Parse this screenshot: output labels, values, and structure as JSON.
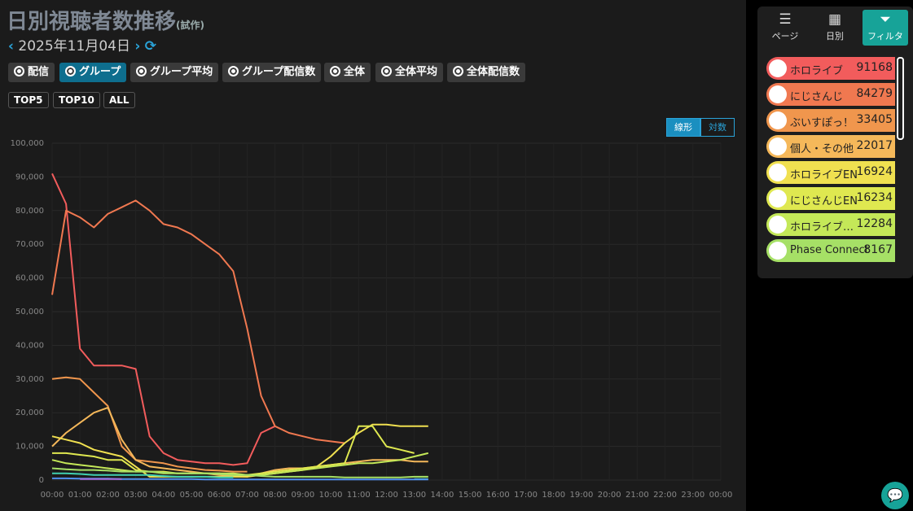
{
  "header": {
    "title": "日別視聴者数推移",
    "suffix": "(試作)",
    "date": "2025年11月04日"
  },
  "nav": [
    "ページ",
    "日別",
    "フィルタ"
  ],
  "modes": [
    "配信",
    "グループ",
    "グループ平均",
    "グループ配信数",
    "全体",
    "全体平均",
    "全体配信数"
  ],
  "active_mode": 1,
  "ranks": [
    "TOP5",
    "TOP10",
    "ALL"
  ],
  "scales": [
    "線形",
    "対数"
  ],
  "active_scale": 0,
  "chart_data": {
    "type": "line",
    "grid": true,
    "xlim": [
      0,
      24
    ],
    "xticks": [
      {
        "value": 0,
        "label": "00:00"
      },
      {
        "value": 1,
        "label": "01:00"
      },
      {
        "value": 2,
        "label": "02:00"
      },
      {
        "value": 3,
        "label": "03:00"
      },
      {
        "value": 4,
        "label": "04:00"
      },
      {
        "value": 5,
        "label": "05:00"
      },
      {
        "value": 6,
        "label": "06:00"
      },
      {
        "value": 7,
        "label": "07:00"
      },
      {
        "value": 8,
        "label": "08:00"
      },
      {
        "value": 9,
        "label": "09:00"
      },
      {
        "value": 10,
        "label": "10:00"
      },
      {
        "value": 11,
        "label": "11:00"
      },
      {
        "value": 12,
        "label": "12:00"
      },
      {
        "value": 13,
        "label": "13:00"
      },
      {
        "value": 14,
        "label": "14:00"
      },
      {
        "value": 15,
        "label": "15:00"
      },
      {
        "value": 16,
        "label": "16:00"
      },
      {
        "value": 17,
        "label": "17:00"
      },
      {
        "value": 18,
        "label": "18:00"
      },
      {
        "value": 19,
        "label": "19:00"
      },
      {
        "value": 20,
        "label": "20:00"
      },
      {
        "value": 21,
        "label": "21:00"
      },
      {
        "value": 22,
        "label": "22:00"
      },
      {
        "value": 23,
        "label": "23:00"
      },
      {
        "value": 24,
        "label": "00:00"
      }
    ],
    "ylim": [
      0,
      100000
    ],
    "yticks": [
      0,
      {
        "value": 10000,
        "label": "10,000"
      },
      {
        "value": 20000,
        "label": "20,000"
      },
      {
        "value": 30000,
        "label": "30,000"
      },
      {
        "value": 40000,
        "label": "40,000"
      },
      {
        "value": 50000,
        "label": "50,000"
      },
      {
        "value": 60000,
        "label": "60,000"
      },
      {
        "value": 70000,
        "label": "70,000"
      },
      {
        "value": 80000,
        "label": "80,000"
      },
      {
        "value": 90000,
        "label": "90,000"
      },
      {
        "value": 100000,
        "label": "100,000"
      }
    ],
    "x": [
      0,
      0.5,
      1,
      1.5,
      2,
      2.5,
      3,
      3.5,
      4,
      4.5,
      5,
      5.5,
      6,
      6.5,
      7,
      7.5,
      8,
      8.5,
      9,
      9.5,
      10,
      10.5,
      11,
      11.5,
      12,
      12.5,
      13,
      13.5
    ],
    "series": [
      {
        "name": "ホロライブ",
        "total": 91168,
        "color": "#f25c5c",
        "values": [
          91000,
          82000,
          39000,
          34000,
          34000,
          34000,
          33000,
          13000,
          8000,
          6000,
          5500,
          5000,
          5000,
          4500,
          5000,
          14000,
          16000,
          null,
          null,
          null,
          null,
          null,
          null,
          null,
          null,
          null,
          null,
          null
        ]
      },
      {
        "name": "にじさんじ",
        "total": 84279,
        "color": "#f07850",
        "values": [
          55000,
          80000,
          78000,
          75000,
          79000,
          81000,
          83000,
          80000,
          76000,
          75000,
          73000,
          70000,
          67000,
          62000,
          45000,
          25000,
          16000,
          14000,
          13000,
          12000,
          11500,
          11000,
          null,
          null,
          null,
          null,
          null,
          null
        ]
      },
      {
        "name": "ぶいすぽっ！",
        "total": 33405,
        "color": "#f0964d",
        "values": [
          30000,
          30500,
          30000,
          26000,
          22000,
          10000,
          6000,
          5500,
          5000,
          4000,
          3500,
          3000,
          2800,
          2500,
          2500,
          null,
          null,
          null,
          null,
          null,
          null,
          null,
          null,
          null,
          null,
          null,
          null,
          null
        ]
      },
      {
        "name": "個人・その他",
        "total": 22017,
        "color": "#f5b85a",
        "values": [
          10000,
          14000,
          17000,
          20000,
          21500,
          12000,
          6000,
          4000,
          3500,
          3000,
          2500,
          2000,
          1500,
          1200,
          1000,
          2000,
          3000,
          3500,
          3500,
          4000,
          4500,
          5000,
          5500,
          6000,
          6000,
          6000,
          5500,
          5500
        ]
      },
      {
        "name": "ホロライブEN",
        "total": 16924,
        "color": "#f0e050",
        "values": [
          13000,
          12000,
          11000,
          9000,
          8000,
          7000,
          4000,
          1000,
          1000,
          1000,
          1000,
          1000,
          1000,
          1000,
          1000,
          1500,
          2000,
          2500,
          3000,
          4000,
          7000,
          11000,
          14000,
          16500,
          16500,
          16000,
          16000,
          16000
        ]
      },
      {
        "name": "にじさんじEN",
        "total": 16234,
        "color": "#dfe850",
        "values": [
          8000,
          8000,
          7500,
          7000,
          6000,
          6000,
          3000,
          2500,
          2500,
          2000,
          2000,
          2000,
          2000,
          1500,
          1500,
          2000,
          2500,
          3000,
          3500,
          4000,
          4500,
          5000,
          16000,
          16000,
          10000,
          9000,
          8000,
          null
        ]
      },
      {
        "name": "ホロライブ…",
        "total": 12284,
        "color": "#c4e858",
        "values": [
          6000,
          5000,
          4500,
          4000,
          3500,
          3000,
          2500,
          2500,
          2000,
          2000,
          2000,
          2000,
          2000,
          2000,
          1500,
          1500,
          2000,
          2500,
          3000,
          3500,
          4000,
          4500,
          5000,
          5000,
          5500,
          6000,
          7000,
          8000
        ]
      },
      {
        "name": "Phase Connect",
        "total": 8167,
        "color": "#a6e066",
        "values": [
          3500,
          3200,
          3000,
          3000,
          2800,
          2500,
          2500,
          2500,
          2200,
          2000,
          2000,
          2000,
          1800,
          1500,
          1500,
          1200,
          1000,
          1000,
          1000,
          1000,
          1000,
          800,
          800,
          800,
          800,
          800,
          1000,
          1000
        ]
      },
      {
        "color": "#40d0b0",
        "values": [
          2000,
          2000,
          1800,
          1500,
          1500,
          1500,
          1500,
          1500,
          1200,
          1000,
          1000,
          1000,
          800,
          800,
          null,
          null,
          null,
          null,
          null,
          null,
          null,
          null,
          null,
          null,
          null,
          null,
          300,
          300
        ]
      },
      {
        "color": "#5090f0",
        "values": [
          500,
          500,
          400,
          400,
          400,
          300,
          300,
          300,
          300,
          300,
          300,
          200,
          200,
          200,
          200,
          200,
          200,
          200,
          200,
          200,
          200,
          200,
          200,
          200,
          200,
          200,
          200,
          200
        ]
      },
      {
        "color": "#a070e0",
        "values": [
          null,
          null,
          300,
          300,
          300,
          300,
          null,
          null,
          null,
          null,
          null,
          null,
          null,
          null,
          null,
          null,
          null,
          null,
          null,
          null,
          null,
          null,
          null,
          null,
          null,
          null,
          null,
          null
        ]
      }
    ]
  }
}
